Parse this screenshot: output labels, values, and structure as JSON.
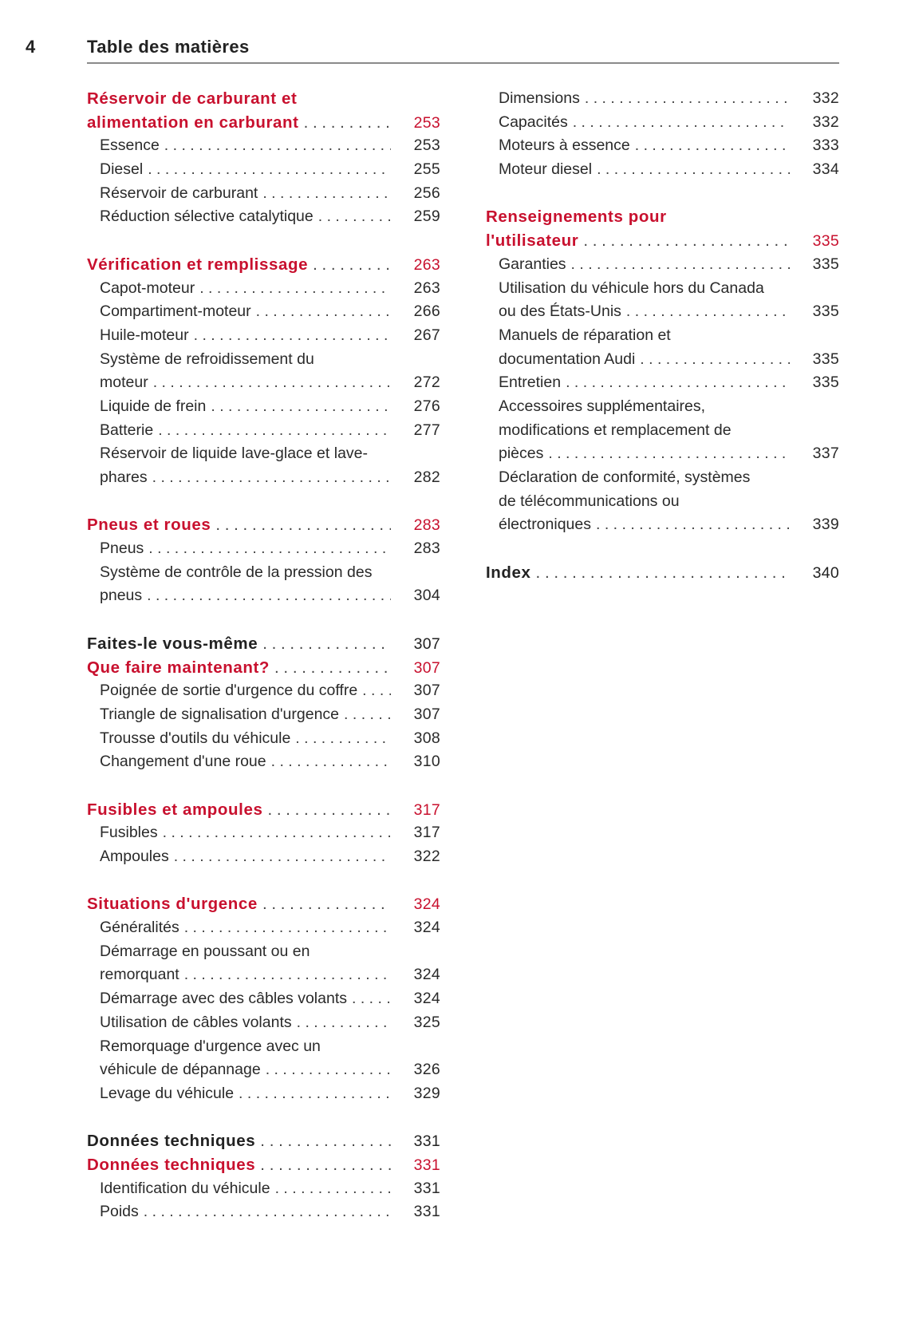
{
  "header": {
    "page_number": "4",
    "title": "Table des matières"
  },
  "colors": {
    "accent": "#c8102e",
    "text": "#2a2a2a",
    "rule": "#8a8a8a"
  },
  "columns": [
    [
      {
        "type": "head",
        "color": "red",
        "lines": [
          "Réservoir de carburant et",
          "alimentation en carburant"
        ],
        "page": "253"
      },
      {
        "type": "sub",
        "lines": [
          "Essence"
        ],
        "page": "253"
      },
      {
        "type": "sub",
        "lines": [
          "Diesel"
        ],
        "page": "255"
      },
      {
        "type": "sub",
        "lines": [
          "Réservoir de carburant"
        ],
        "page": "256"
      },
      {
        "type": "sub",
        "lines": [
          "Réduction sélective catalytique"
        ],
        "page": "259"
      },
      {
        "type": "spacer"
      },
      {
        "type": "head",
        "color": "red",
        "lines": [
          "Vérification et remplissage"
        ],
        "page": "263"
      },
      {
        "type": "sub",
        "lines": [
          "Capot-moteur"
        ],
        "page": "263"
      },
      {
        "type": "sub",
        "lines": [
          "Compartiment-moteur"
        ],
        "page": "266"
      },
      {
        "type": "sub",
        "lines": [
          "Huile-moteur"
        ],
        "page": "267"
      },
      {
        "type": "sub",
        "lines": [
          "Système de refroidissement du",
          "moteur"
        ],
        "page": "272"
      },
      {
        "type": "sub",
        "lines": [
          "Liquide de frein"
        ],
        "page": "276"
      },
      {
        "type": "sub",
        "lines": [
          "Batterie"
        ],
        "page": "277"
      },
      {
        "type": "sub",
        "lines": [
          "Réservoir de liquide lave-glace et lave-",
          "phares"
        ],
        "page": "282"
      },
      {
        "type": "spacer"
      },
      {
        "type": "head",
        "color": "red",
        "lines": [
          "Pneus et roues"
        ],
        "page": "283"
      },
      {
        "type": "sub",
        "lines": [
          "Pneus"
        ],
        "page": "283"
      },
      {
        "type": "sub",
        "lines": [
          "Système de contrôle de la pression des",
          "pneus"
        ],
        "page": "304"
      },
      {
        "type": "spacer"
      },
      {
        "type": "head",
        "color": "black",
        "lines": [
          "Faites-le vous-même"
        ],
        "page": "307"
      },
      {
        "type": "head",
        "color": "red",
        "lines": [
          "Que faire maintenant?"
        ],
        "page": "307"
      },
      {
        "type": "sub",
        "lines": [
          "Poignée de sortie d'urgence du coffre"
        ],
        "page": "307"
      },
      {
        "type": "sub",
        "lines": [
          "Triangle de signalisation d'urgence"
        ],
        "page": "307"
      },
      {
        "type": "sub",
        "lines": [
          "Trousse d'outils du véhicule"
        ],
        "page": "308"
      },
      {
        "type": "sub",
        "lines": [
          "Changement d'une roue"
        ],
        "page": "310"
      },
      {
        "type": "spacer"
      },
      {
        "type": "head",
        "color": "red",
        "lines": [
          "Fusibles et ampoules"
        ],
        "page": "317"
      },
      {
        "type": "sub",
        "lines": [
          "Fusibles"
        ],
        "page": "317"
      },
      {
        "type": "sub",
        "lines": [
          "Ampoules"
        ],
        "page": "322"
      },
      {
        "type": "spacer"
      },
      {
        "type": "head",
        "color": "red",
        "lines": [
          "Situations d'urgence"
        ],
        "page": "324"
      },
      {
        "type": "sub",
        "lines": [
          "Généralités"
        ],
        "page": "324"
      },
      {
        "type": "sub",
        "lines": [
          "Démarrage en poussant ou en",
          "remorquant"
        ],
        "page": "324"
      },
      {
        "type": "sub",
        "lines": [
          "Démarrage avec des câbles volants"
        ],
        "page": "324"
      },
      {
        "type": "sub",
        "lines": [
          "Utilisation de câbles volants"
        ],
        "page": "325"
      },
      {
        "type": "sub",
        "lines": [
          "Remorquage d'urgence avec un",
          "véhicule de dépannage"
        ],
        "page": "326"
      },
      {
        "type": "sub",
        "lines": [
          "Levage du véhicule"
        ],
        "page": "329"
      },
      {
        "type": "spacer"
      },
      {
        "type": "head",
        "color": "black",
        "lines": [
          "Données techniques"
        ],
        "page": "331"
      },
      {
        "type": "head",
        "color": "red",
        "lines": [
          "Données techniques"
        ],
        "page": "331"
      },
      {
        "type": "sub",
        "lines": [
          "Identification du véhicule"
        ],
        "page": "331"
      },
      {
        "type": "sub",
        "lines": [
          "Poids"
        ],
        "page": "331"
      }
    ],
    [
      {
        "type": "sub",
        "lines": [
          "Dimensions"
        ],
        "page": "332"
      },
      {
        "type": "sub",
        "lines": [
          "Capacités"
        ],
        "page": "332"
      },
      {
        "type": "sub",
        "lines": [
          "Moteurs à essence"
        ],
        "page": "333"
      },
      {
        "type": "sub",
        "lines": [
          "Moteur diesel"
        ],
        "page": "334"
      },
      {
        "type": "spacer"
      },
      {
        "type": "head",
        "color": "red",
        "lines": [
          "Renseignements pour",
          "l'utilisateur"
        ],
        "page": "335"
      },
      {
        "type": "sub",
        "lines": [
          "Garanties"
        ],
        "page": "335"
      },
      {
        "type": "sub",
        "lines": [
          "Utilisation du véhicule hors du Canada",
          "ou des États-Unis"
        ],
        "page": "335"
      },
      {
        "type": "sub",
        "lines": [
          "Manuels de réparation et",
          "documentation Audi"
        ],
        "page": "335"
      },
      {
        "type": "sub",
        "lines": [
          "Entretien"
        ],
        "page": "335"
      },
      {
        "type": "sub",
        "lines": [
          "Accessoires supplémentaires,",
          "modifications et remplacement de",
          "pièces"
        ],
        "page": "337"
      },
      {
        "type": "sub",
        "lines": [
          "Déclaration de conformité, systèmes",
          "de télécommunications ou",
          "électroniques"
        ],
        "page": "339"
      },
      {
        "type": "spacer"
      },
      {
        "type": "head",
        "color": "black",
        "lines": [
          "Index"
        ],
        "page": "340"
      }
    ]
  ]
}
